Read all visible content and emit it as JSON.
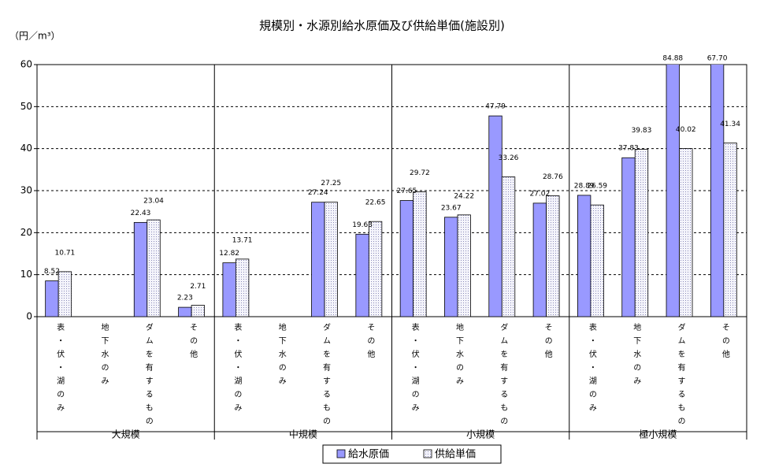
{
  "chart_data": {
    "type": "bar",
    "title": "規模別・水源別給水原価及び供給単価(施設別)",
    "y_label": "（円／m³）",
    "categories": [
      "表・伏・湖のみ",
      "地下水のみ",
      "ダムを有するもの",
      "その他",
      "表・伏・湖のみ",
      "地下水のみ",
      "ダムを有するもの",
      "その他",
      "表・伏・湖のみ",
      "地下水のみ",
      "ダムを有するもの",
      "その他",
      "表・伏・湖のみ",
      "地下水のみ",
      "ダムを有するもの",
      "その他"
    ],
    "groups": [
      "大規模",
      "中規模",
      "小規模",
      "極小規模"
    ],
    "series": [
      {
        "name": "給水原価",
        "color": "#9999ff",
        "values": [
          8.52,
          null,
          22.43,
          2.23,
          12.82,
          null,
          27.24,
          19.63,
          27.65,
          23.67,
          47.79,
          27.02,
          28.89,
          37.83,
          84.88,
          67.7
        ],
        "value_labels": [
          "8.52",
          null,
          "22.43",
          "2.23",
          "12.82",
          null,
          "27.24",
          "19.63",
          "27.65",
          "23.67",
          "47.79",
          "27.02",
          "28.89",
          "37.83",
          "84.88",
          "67.70"
        ]
      },
      {
        "name": "供給単価",
        "color": "#dde0f4",
        "values": [
          10.71,
          null,
          23.04,
          2.71,
          13.71,
          null,
          27.25,
          22.65,
          29.72,
          24.22,
          33.26,
          28.76,
          26.59,
          39.83,
          40.02,
          41.34
        ],
        "value_labels": [
          "10.71",
          null,
          "23.04",
          "2.71",
          "13.71",
          null,
          "27.25",
          "22.65",
          "29.72",
          "24.22",
          "33.26",
          "28.76",
          "26.59",
          "39.83",
          "40.02",
          "41.34"
        ]
      }
    ],
    "ylim": [
      0,
      60
    ],
    "yticks": [
      0,
      10,
      20,
      30,
      40,
      50,
      60
    ],
    "grid": true,
    "legend": "bottom"
  }
}
